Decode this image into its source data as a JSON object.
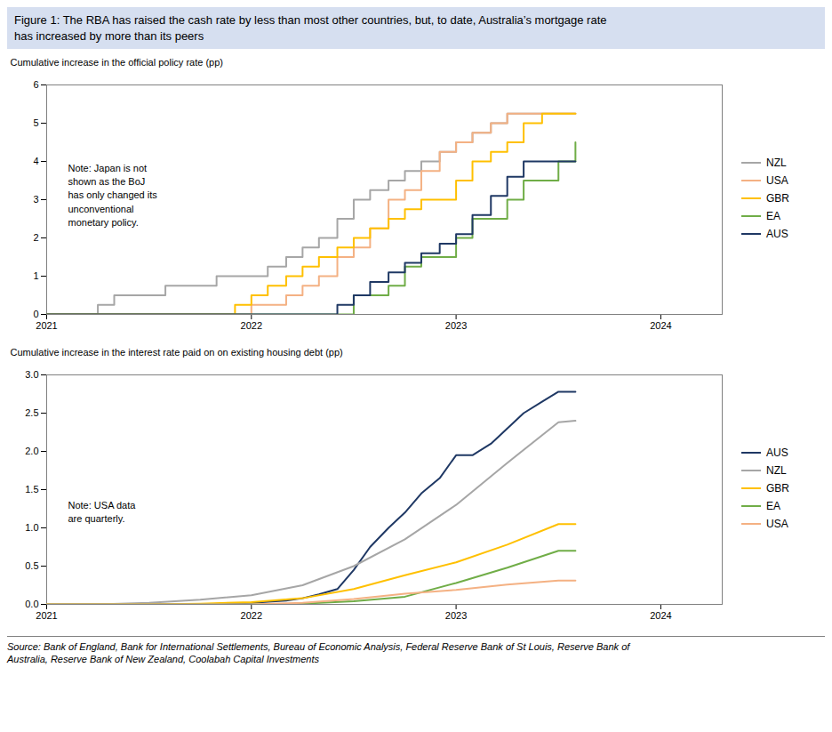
{
  "chart_data": [
    {
      "type": "step",
      "title": "Figure 1: The RBA has raised the cash rate by less than most other countries, but, to date, Australia’s mortgage rate\nhas increased by more than its peers",
      "ylabel": "Cumulative increase in the official policy rate (pp)",
      "annotations": [
        "Note: Japan is not\nshown as the BoJ\nhas only changed its\nunconventional\nmonetary policy."
      ],
      "xlim": [
        2021,
        2024.3
      ],
      "xticks": [
        2021,
        2022,
        2023,
        2024
      ],
      "ylim": [
        0,
        6
      ],
      "yticks": [
        0,
        1,
        2,
        3,
        4,
        5,
        6
      ],
      "grid": false,
      "legend": "right",
      "x": [
        2021.0,
        2021.08,
        2021.17,
        2021.25,
        2021.33,
        2021.42,
        2021.5,
        2021.58,
        2021.67,
        2021.75,
        2021.83,
        2021.92,
        2022.0,
        2022.08,
        2022.17,
        2022.25,
        2022.33,
        2022.42,
        2022.5,
        2022.58,
        2022.67,
        2022.75,
        2022.83,
        2022.92,
        2023.0,
        2023.08,
        2023.17,
        2023.25,
        2023.33,
        2023.42,
        2023.5,
        2023.583
      ],
      "series": [
        {
          "name": "NZL",
          "color": "#a6a6a6",
          "values": [
            0,
            0,
            0,
            0.25,
            0.5,
            0.5,
            0.5,
            0.75,
            0.75,
            0.75,
            1.0,
            1.0,
            1.0,
            1.25,
            1.5,
            1.75,
            2.0,
            2.5,
            3.0,
            3.25,
            3.5,
            3.75,
            4.0,
            4.25,
            4.5,
            4.75,
            5.0,
            5.25,
            5.25,
            5.25,
            5.25,
            5.25
          ]
        },
        {
          "name": "USA",
          "color": "#f4b183",
          "values": [
            0,
            0,
            0,
            0,
            0,
            0,
            0,
            0,
            0,
            0,
            0,
            0,
            0.25,
            0.25,
            0.5,
            0.75,
            1.0,
            1.5,
            1.75,
            2.25,
            3.0,
            3.25,
            3.75,
            4.25,
            4.5,
            4.75,
            5.0,
            5.25,
            5.25,
            5.25,
            5.25,
            5.25
          ]
        },
        {
          "name": "GBR",
          "color": "#ffc000",
          "values": [
            0,
            0,
            0,
            0,
            0,
            0,
            0,
            0,
            0,
            0,
            0,
            0.25,
            0.5,
            0.75,
            1.0,
            1.25,
            1.5,
            1.75,
            2.0,
            2.25,
            2.5,
            2.75,
            3.0,
            3.0,
            3.5,
            4.0,
            4.25,
            4.5,
            5.0,
            5.25,
            5.25,
            5.25
          ]
        },
        {
          "name": "EA",
          "color": "#70ad47",
          "values": [
            0,
            0,
            0,
            0,
            0,
            0,
            0,
            0,
            0,
            0,
            0,
            0,
            0,
            0,
            0,
            0,
            0,
            0,
            0.5,
            0.5,
            0.75,
            1.25,
            1.5,
            1.5,
            2.0,
            2.5,
            2.5,
            3.0,
            3.5,
            3.5,
            4.0,
            4.5
          ]
        },
        {
          "name": "AUS",
          "color": "#1f3864",
          "values": [
            0,
            0,
            0,
            0,
            0,
            0,
            0,
            0,
            0,
            0,
            0,
            0,
            0,
            0,
            0,
            0,
            0,
            0.25,
            0.5,
            0.85,
            1.1,
            1.35,
            1.6,
            1.85,
            2.1,
            2.6,
            3.1,
            3.6,
            4.0,
            4.0,
            4.0,
            4.0
          ]
        }
      ]
    },
    {
      "type": "line",
      "ylabel": "Cumulative increase in the interest rate paid on on existing housing debt (pp)",
      "annotations": [
        "Note: USA data\nare quarterly."
      ],
      "source": "Source: Bank of England, Bank for International Settlements, Bureau of Economic Analysis, Federal Reserve Bank of St Louis, Reserve Bank of\nAustralia, Reserve Bank of New Zealand, Coolabah Capital Investments",
      "xlim": [
        2021,
        2024.3
      ],
      "xticks": [
        2021,
        2022,
        2023,
        2024
      ],
      "ylim": [
        0,
        3.0
      ],
      "yticks": [
        {
          "value": 0.0,
          "label": "0.0"
        },
        {
          "value": 0.5,
          "label": "0.5"
        },
        {
          "value": 1.0,
          "label": "1.0"
        },
        {
          "value": 1.5,
          "label": "1.5"
        },
        {
          "value": 2.0,
          "label": "2.0"
        },
        {
          "value": 2.5,
          "label": "2.5"
        },
        {
          "value": 3.0,
          "label": "3.0"
        }
      ],
      "grid": false,
      "legend": "right",
      "series": [
        {
          "name": "AUS",
          "color": "#1f3864",
          "x": [
            2021.0,
            2021.25,
            2021.5,
            2021.75,
            2022.0,
            2022.17,
            2022.25,
            2022.33,
            2022.42,
            2022.5,
            2022.58,
            2022.67,
            2022.75,
            2022.83,
            2022.92,
            2023.0,
            2023.08,
            2023.17,
            2023.25,
            2023.33,
            2023.42,
            2023.5,
            2023.583
          ],
          "values": [
            0,
            0,
            0,
            0,
            0.02,
            0.05,
            0.08,
            0.13,
            0.2,
            0.45,
            0.75,
            1.0,
            1.2,
            1.45,
            1.65,
            1.95,
            1.95,
            2.1,
            2.3,
            2.5,
            2.65,
            2.78,
            2.78
          ]
        },
        {
          "name": "NZL",
          "color": "#a6a6a6",
          "x": [
            2021.0,
            2021.25,
            2021.5,
            2021.75,
            2022.0,
            2022.25,
            2022.5,
            2022.75,
            2023.0,
            2023.25,
            2023.5,
            2023.583
          ],
          "values": [
            0,
            0,
            0.02,
            0.06,
            0.12,
            0.25,
            0.5,
            0.85,
            1.3,
            1.85,
            2.38,
            2.4
          ]
        },
        {
          "name": "GBR",
          "color": "#ffc000",
          "x": [
            2021.0,
            2021.25,
            2021.5,
            2021.75,
            2022.0,
            2022.25,
            2022.5,
            2022.75,
            2023.0,
            2023.25,
            2023.5,
            2023.583
          ],
          "values": [
            0,
            0,
            0,
            0.01,
            0.03,
            0.08,
            0.2,
            0.38,
            0.55,
            0.78,
            1.05,
            1.05
          ]
        },
        {
          "name": "EA",
          "color": "#70ad47",
          "x": [
            2021.0,
            2021.25,
            2021.5,
            2021.75,
            2022.0,
            2022.25,
            2022.5,
            2022.75,
            2023.0,
            2023.25,
            2023.5,
            2023.583
          ],
          "values": [
            0,
            0,
            0,
            0,
            0,
            0.01,
            0.04,
            0.1,
            0.28,
            0.48,
            0.7,
            0.7
          ]
        },
        {
          "name": "USA",
          "color": "#f4b183",
          "x": [
            2021.0,
            2021.25,
            2021.5,
            2021.75,
            2022.0,
            2022.25,
            2022.5,
            2022.75,
            2023.0,
            2023.25,
            2023.5,
            2023.583
          ],
          "values": [
            0,
            0,
            0,
            0,
            0,
            0.02,
            0.07,
            0.14,
            0.19,
            0.26,
            0.31,
            0.31
          ]
        }
      ]
    }
  ]
}
